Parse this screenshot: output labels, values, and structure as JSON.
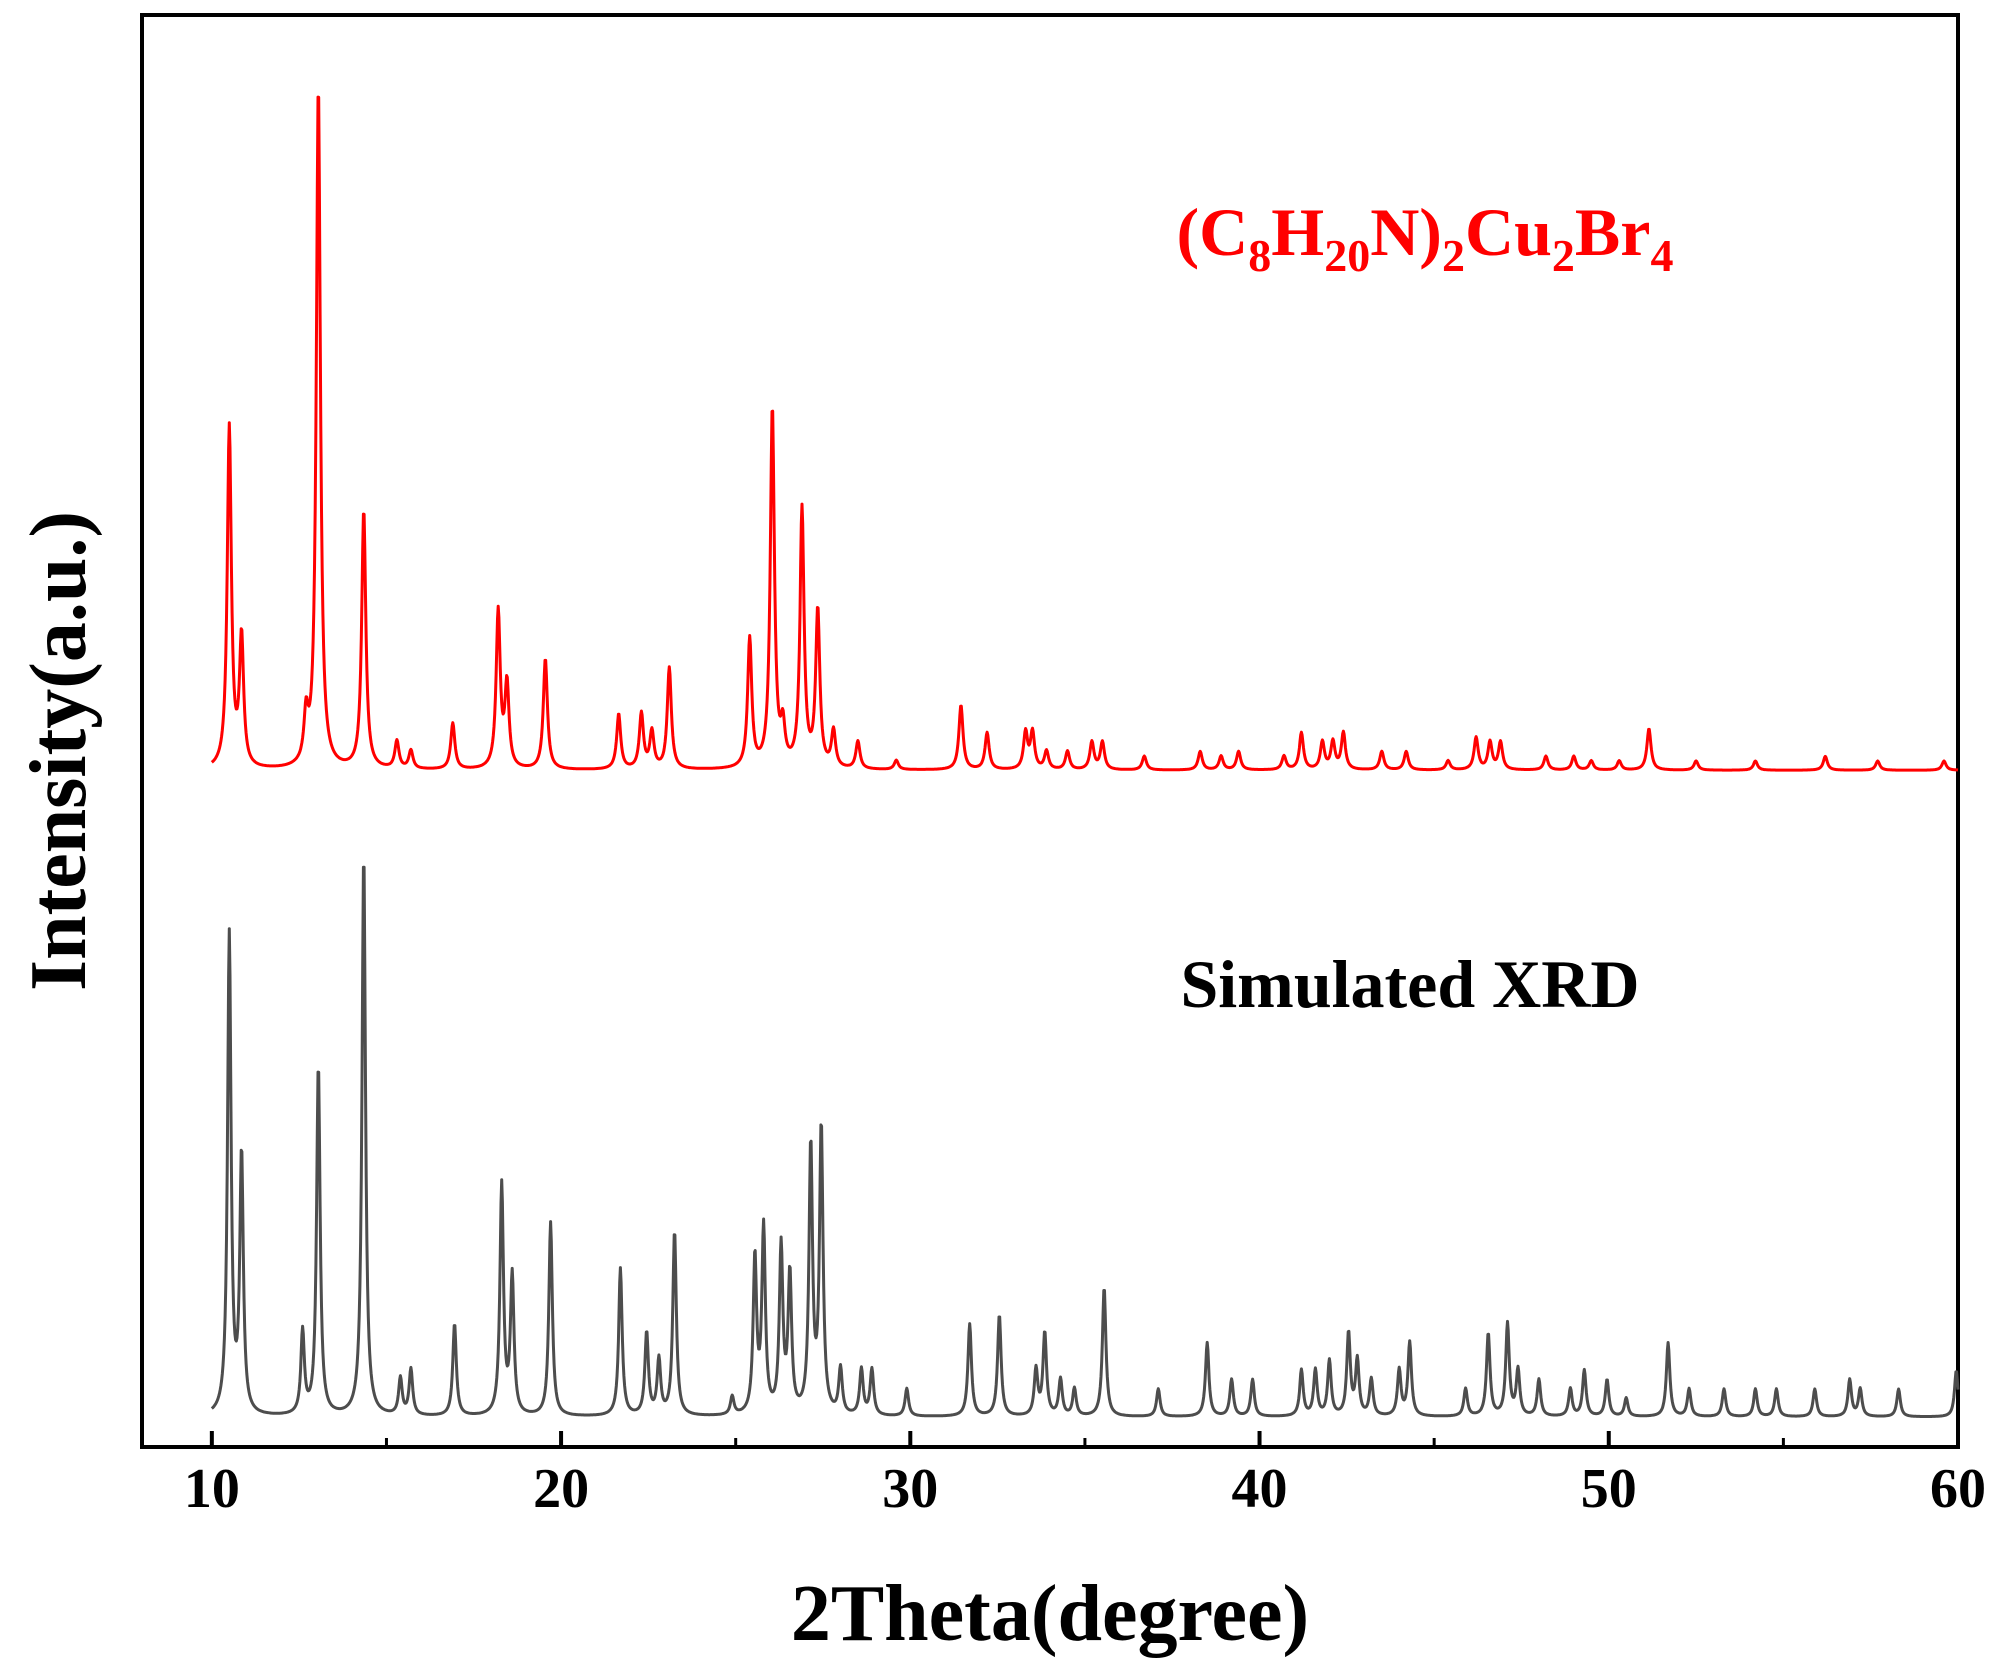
{
  "chart_data": {
    "type": "line",
    "title": "",
    "xlabel": "2Theta(degree)",
    "ylabel": "Intensity(a.u.)",
    "xlim": [
      8,
      60
    ],
    "ylim": [
      0,
      1.55
    ],
    "xticks": [
      10,
      20,
      30,
      40,
      50,
      60
    ],
    "xtick_labels": [
      "10",
      "20",
      "30",
      "40",
      "50",
      "60"
    ],
    "yticks_shown": false,
    "grid": false,
    "series": [
      {
        "name": "(C8H20N)2Cu2Br4",
        "label_parts": {
          "base": [
            "(C",
            "H",
            "N)",
            "Cu",
            "Br"
          ],
          "sub": [
            "8",
            "20",
            "2",
            "2",
            "4"
          ]
        },
        "color": "#ff0000",
        "baseline": 0.7,
        "peak_width": 0.07,
        "peaks": [
          [
            10.5,
            0.37
          ],
          [
            10.85,
            0.14
          ],
          [
            12.7,
            0.05
          ],
          [
            13.05,
            0.74
          ],
          [
            14.35,
            0.28
          ],
          [
            15.3,
            0.03
          ],
          [
            15.7,
            0.02
          ],
          [
            16.9,
            0.05
          ],
          [
            18.2,
            0.17
          ],
          [
            18.45,
            0.09
          ],
          [
            19.55,
            0.12
          ],
          [
            21.65,
            0.06
          ],
          [
            22.3,
            0.06
          ],
          [
            22.6,
            0.04
          ],
          [
            23.1,
            0.11
          ],
          [
            25.4,
            0.14
          ],
          [
            26.05,
            0.39
          ],
          [
            26.35,
            0.04
          ],
          [
            26.9,
            0.28
          ],
          [
            27.35,
            0.17
          ],
          [
            27.8,
            0.04
          ],
          [
            28.5,
            0.03
          ],
          [
            29.6,
            0.01
          ],
          [
            31.45,
            0.07
          ],
          [
            32.2,
            0.04
          ],
          [
            33.3,
            0.04
          ],
          [
            33.5,
            0.04
          ],
          [
            33.9,
            0.02
          ],
          [
            34.5,
            0.02
          ],
          [
            35.2,
            0.03
          ],
          [
            35.5,
            0.03
          ],
          [
            36.7,
            0.015
          ],
          [
            38.3,
            0.02
          ],
          [
            38.9,
            0.015
          ],
          [
            39.4,
            0.02
          ],
          [
            40.7,
            0.015
          ],
          [
            41.2,
            0.04
          ],
          [
            41.8,
            0.03
          ],
          [
            42.1,
            0.03
          ],
          [
            42.4,
            0.04
          ],
          [
            43.5,
            0.02
          ],
          [
            44.2,
            0.02
          ],
          [
            45.4,
            0.01
          ],
          [
            46.2,
            0.035
          ],
          [
            46.6,
            0.03
          ],
          [
            46.9,
            0.03
          ],
          [
            48.2,
            0.015
          ],
          [
            49.0,
            0.015
          ],
          [
            49.5,
            0.01
          ],
          [
            50.3,
            0.01
          ],
          [
            51.15,
            0.045
          ],
          [
            52.5,
            0.01
          ],
          [
            54.2,
            0.01
          ],
          [
            56.2,
            0.015
          ],
          [
            57.7,
            0.01
          ],
          [
            59.6,
            0.01
          ]
        ]
      },
      {
        "name": "Simulated XRD",
        "color": "#4d4d4d",
        "baseline": 0.0,
        "peak_width": 0.06,
        "peaks": [
          [
            10.5,
            0.52
          ],
          [
            10.85,
            0.28
          ],
          [
            12.6,
            0.09
          ],
          [
            13.05,
            0.38
          ],
          [
            14.35,
            0.61
          ],
          [
            15.4,
            0.04
          ],
          [
            15.7,
            0.05
          ],
          [
            16.95,
            0.1
          ],
          [
            18.3,
            0.25
          ],
          [
            18.6,
            0.15
          ],
          [
            19.7,
            0.21
          ],
          [
            21.7,
            0.16
          ],
          [
            22.45,
            0.09
          ],
          [
            22.8,
            0.06
          ],
          [
            23.25,
            0.2
          ],
          [
            24.9,
            0.02
          ],
          [
            25.55,
            0.17
          ],
          [
            25.8,
            0.2
          ],
          [
            26.3,
            0.18
          ],
          [
            26.55,
            0.15
          ],
          [
            27.15,
            0.29
          ],
          [
            27.45,
            0.31
          ],
          [
            28.0,
            0.05
          ],
          [
            28.6,
            0.05
          ],
          [
            28.9,
            0.05
          ],
          [
            29.9,
            0.03
          ],
          [
            31.7,
            0.1
          ],
          [
            32.55,
            0.11
          ],
          [
            33.6,
            0.05
          ],
          [
            33.85,
            0.09
          ],
          [
            34.3,
            0.04
          ],
          [
            34.7,
            0.03
          ],
          [
            35.55,
            0.14
          ],
          [
            37.1,
            0.03
          ],
          [
            38.5,
            0.08
          ],
          [
            39.2,
            0.04
          ],
          [
            39.8,
            0.04
          ],
          [
            41.2,
            0.05
          ],
          [
            41.6,
            0.05
          ],
          [
            42.0,
            0.06
          ],
          [
            42.55,
            0.09
          ],
          [
            42.8,
            0.06
          ],
          [
            43.2,
            0.04
          ],
          [
            44.0,
            0.05
          ],
          [
            44.3,
            0.08
          ],
          [
            45.9,
            0.03
          ],
          [
            46.55,
            0.09
          ],
          [
            47.1,
            0.1
          ],
          [
            47.4,
            0.05
          ],
          [
            48.0,
            0.04
          ],
          [
            48.9,
            0.03
          ],
          [
            49.3,
            0.05
          ],
          [
            49.95,
            0.04
          ],
          [
            50.5,
            0.02
          ],
          [
            51.7,
            0.08
          ],
          [
            52.3,
            0.03
          ],
          [
            53.3,
            0.03
          ],
          [
            54.2,
            0.03
          ],
          [
            54.8,
            0.03
          ],
          [
            55.9,
            0.03
          ],
          [
            56.9,
            0.04
          ],
          [
            57.2,
            0.03
          ],
          [
            58.3,
            0.03
          ],
          [
            59.95,
            0.05
          ]
        ]
      }
    ],
    "annotations": [
      {
        "text": "Simulated XRD",
        "attached_to": "Simulated XRD"
      }
    ]
  }
}
